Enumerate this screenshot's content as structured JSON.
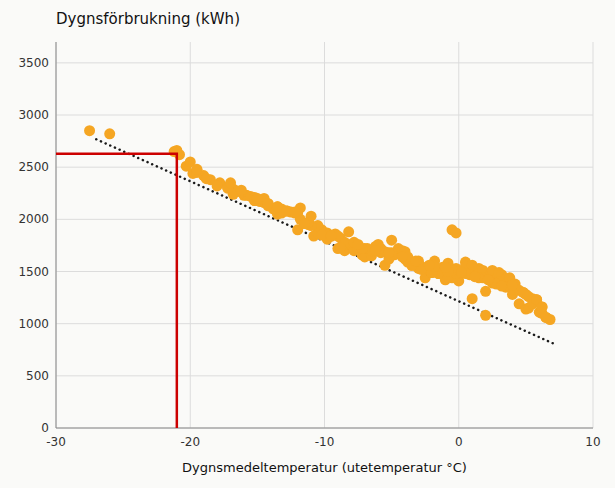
{
  "chart_data": {
    "type": "scatter",
    "title": "Dygnsförbrukning (kWh)",
    "x_label": "Dygnsmedeltemperatur (utetemperatur °C)",
    "xlim": [
      -30,
      10
    ],
    "ylim": [
      0,
      3700
    ],
    "xticks": [
      -30,
      -20,
      -10,
      0,
      10
    ],
    "yticks": [
      0,
      500,
      1000,
      1500,
      2000,
      2500,
      3000,
      3500
    ],
    "grid": true,
    "series": [
      {
        "type": "scatter",
        "color": "#F5A623",
        "marker": "circle",
        "x": [
          -27.5,
          -26.0,
          -21.2,
          -21.0,
          -20.8,
          -20.3,
          -20.0,
          -19.5,
          -19.0,
          -18.5,
          -17.8,
          -17.2,
          -16.8,
          -16.5,
          -16.0,
          -15.8,
          -15.5,
          -15.2,
          -14.8,
          -14.5,
          -14.2,
          -13.8,
          -13.5,
          -13.2,
          -12.8,
          -12.5,
          -12.2,
          -11.8,
          -11.5,
          -11.2,
          -10.8,
          -10.5,
          -10.2,
          -9.8,
          -9.5,
          -9.2,
          -9.0,
          -8.8,
          -8.5,
          -8.2,
          -8.0,
          -7.8,
          -7.5,
          -7.2,
          -7.0,
          -6.8,
          -6.5,
          -6.2,
          -6.0,
          -5.8,
          -5.5,
          -5.2,
          -5.0,
          -4.8,
          -4.5,
          -4.2,
          -4.0,
          -3.8,
          -3.5,
          -3.2,
          -3.0,
          -2.8,
          -2.5,
          -2.2,
          -2.0,
          -1.8,
          -1.5,
          -1.2,
          -1.0,
          -0.8,
          -0.5,
          -0.2,
          0.0,
          0.2,
          0.5,
          0.8,
          1.0,
          1.2,
          1.5,
          1.8,
          2.0,
          2.2,
          2.5,
          2.8,
          3.0,
          3.2,
          3.5,
          3.8,
          4.0,
          4.2,
          4.5,
          4.8,
          5.0,
          5.2,
          5.5,
          5.8,
          6.0,
          6.2,
          6.5,
          -0.5,
          -0.2,
          -10.5,
          -11.0,
          -12.0,
          -13.5,
          -14.5,
          -15.2,
          -16.2,
          -17.2,
          -18.0,
          -19.8,
          -19.5,
          0.5,
          1.0,
          2.0,
          1.0,
          -0.8,
          -1.5,
          -2.0,
          -2.8,
          -3.5,
          -4.0,
          -5.0,
          -5.5,
          -6.5,
          -7.0,
          -8.5,
          -9.0,
          -10.0,
          -11.0,
          -12.0,
          -13.2,
          -14.2,
          -16.8,
          0.0,
          -0.2,
          0.8,
          1.8,
          2.5,
          3.0,
          3.8,
          4.2,
          5.0,
          5.2,
          6.2,
          6.8,
          -1.2,
          -1.8,
          -3.0,
          -3.8,
          -5.2,
          -5.8,
          -7.2,
          -7.8,
          -8.8,
          -9.8,
          -11.2,
          -11.8,
          -12.8,
          -13.8,
          -15.2,
          -17.2,
          -0.5,
          0.5,
          1.5,
          2.8,
          3.5,
          4.5,
          5.5,
          6.5,
          -0.8,
          -2.2,
          -4.2,
          -6.2,
          -8.2,
          -10.2,
          -12.2,
          -14.2,
          -16.2,
          -18.8,
          0.2,
          1.2,
          2.2,
          3.2,
          4.0,
          4.8,
          5.8,
          6.2,
          -1.0,
          -3.2,
          -5.2,
          -7.5,
          -9.5,
          -11.5,
          -13.5,
          -15.0,
          -17.0,
          -19.5
        ],
        "values": [
          2850,
          2820,
          2650,
          2660,
          2620,
          2510,
          2550,
          2470,
          2420,
          2380,
          2350,
          2310,
          2290,
          2270,
          2230,
          2230,
          2220,
          2210,
          2170,
          2160,
          2150,
          2100,
          2120,
          2100,
          2080,
          2070,
          2060,
          2110,
          1960,
          1950,
          1840,
          1870,
          1900,
          1870,
          1840,
          1860,
          1720,
          1820,
          1700,
          1760,
          1750,
          1700,
          1720,
          1660,
          1640,
          1720,
          1650,
          1740,
          1760,
          1720,
          1690,
          1660,
          1800,
          1660,
          1720,
          1700,
          1690,
          1590,
          1560,
          1580,
          1530,
          1550,
          1440,
          1510,
          1490,
          1600,
          1480,
          1510,
          1420,
          1580,
          1440,
          1530,
          1410,
          1490,
          1590,
          1540,
          1470,
          1480,
          1530,
          1510,
          1310,
          1450,
          1510,
          1430,
          1490,
          1470,
          1430,
          1440,
          1280,
          1380,
          1190,
          1300,
          1140,
          1150,
          1240,
          1230,
          1110,
          1160,
          1060,
          1900,
          1870,
          1940,
          2030,
          1900,
          2050,
          2200,
          2180,
          2260,
          2300,
          2320,
          2440,
          2450,
          1550,
          1560,
          1080,
          1240,
          1450,
          1480,
          1490,
          1520,
          1560,
          1620,
          1680,
          1560,
          1700,
          1720,
          1780,
          1840,
          1870,
          1940,
          2060,
          2060,
          2130,
          2240,
          1500,
          1480,
          1470,
          1440,
          1390,
          1400,
          1360,
          1330,
          1280,
          1260,
          1100,
          1040,
          1540,
          1550,
          1600,
          1640,
          1620,
          1680,
          1720,
          1780,
          1730,
          1810,
          1970,
          2000,
          2080,
          2100,
          2180,
          2300,
          1510,
          1480,
          1440,
          1380,
          1350,
          1320,
          1190,
          1060,
          1500,
          1560,
          1640,
          1700,
          1880,
          1850,
          2070,
          2150,
          2280,
          2390,
          1490,
          1450,
          1420,
          1360,
          1370,
          1300,
          1230,
          1160,
          1540,
          1600,
          1680,
          1760,
          1840,
          1960,
          2120,
          2200,
          2350,
          2480
        ]
      },
      {
        "type": "line",
        "color": "#1a1a1a",
        "line_style": "dotted",
        "x": [
          -27,
          7.0
        ],
        "values": [
          2767.5,
          812.5
        ]
      },
      {
        "type": "line",
        "color": "#CC0000",
        "line_style": "solid",
        "x": [
          -30,
          -21,
          -21
        ],
        "values": [
          2630,
          2630,
          0
        ]
      }
    ]
  }
}
